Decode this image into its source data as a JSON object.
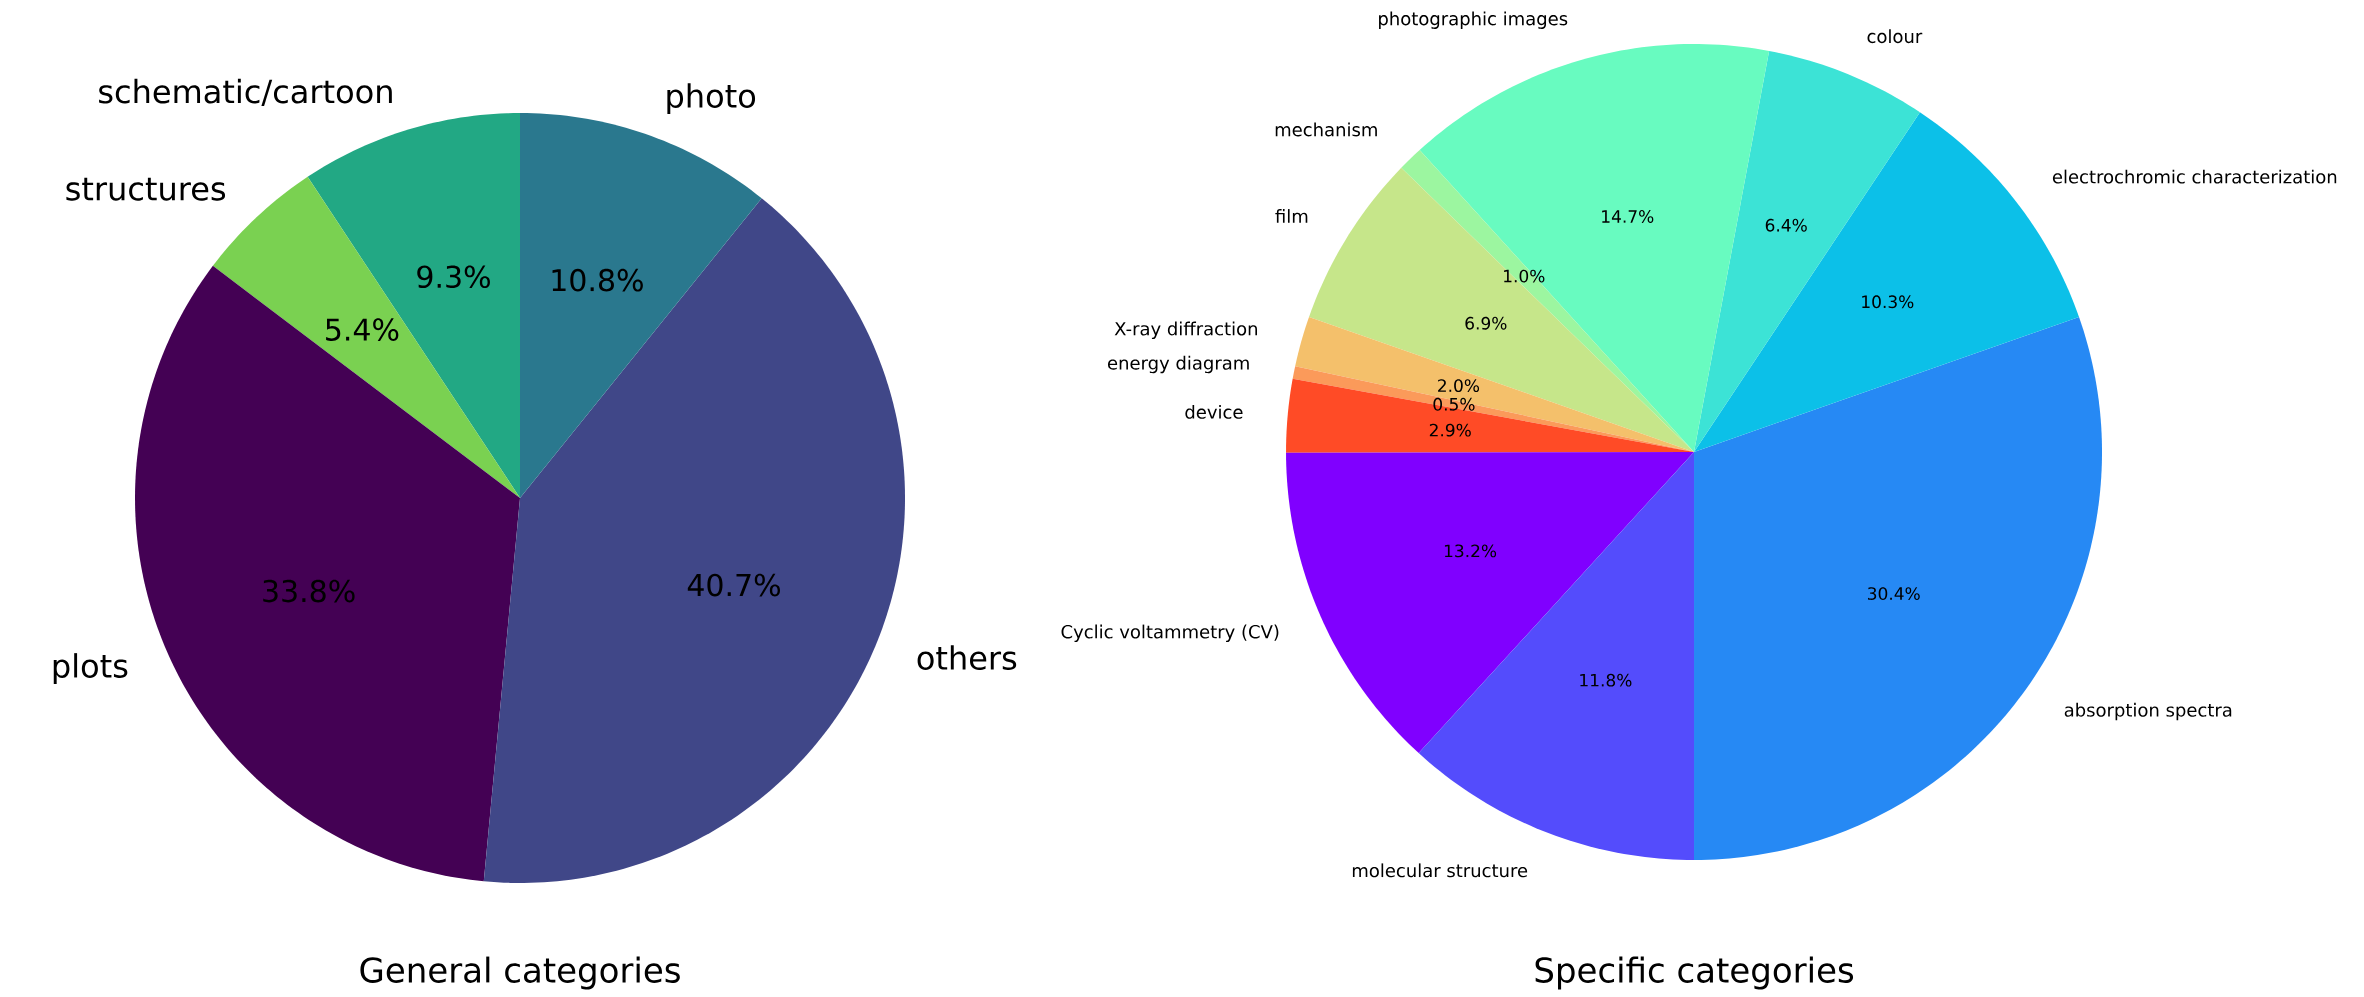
{
  "chart_data": [
    {
      "type": "pie",
      "title": "General categories",
      "categories": [
        "schematic/cartoon",
        "structures",
        "plots",
        "others",
        "photo"
      ],
      "values": [
        9.3,
        5.4,
        33.8,
        40.7,
        10.8
      ],
      "colors": [
        "#22a884",
        "#7ad151",
        "#440154",
        "#404788",
        "#2a788e"
      ],
      "value_labels": [
        "9.3%",
        "5.4%",
        "33.8%",
        "40.7%",
        "10.8%"
      ]
    },
    {
      "type": "pie",
      "title": "Specific categories",
      "categories": [
        "absorption spectra",
        "electrochromic characterization",
        "colour",
        "photographic images",
        "mechanism",
        "film",
        "X-ray diffraction",
        "energy diagram",
        "device",
        "Cyclic voltammetry (CV)",
        "molecular structure"
      ],
      "values": [
        30.4,
        10.3,
        6.4,
        14.7,
        1.0,
        6.9,
        2.0,
        0.5,
        2.9,
        13.2,
        11.8
      ],
      "colors": [
        "#2689f4",
        "#0cc0e8",
        "#3ce3d6",
        "#68fbc0",
        "#9cf6a0",
        "#c6e68a",
        "#f4c06b",
        "#fb9a5a",
        "#ff4b26",
        "#8000ff",
        "#544cfc"
      ],
      "value_labels": [
        "30.4%",
        "10.3%",
        "6.4%",
        "14.7%",
        "1.0%",
        "6.9%",
        "2.0%",
        "0.5%",
        "2.9%",
        "13.2%",
        "11.8%"
      ]
    }
  ]
}
